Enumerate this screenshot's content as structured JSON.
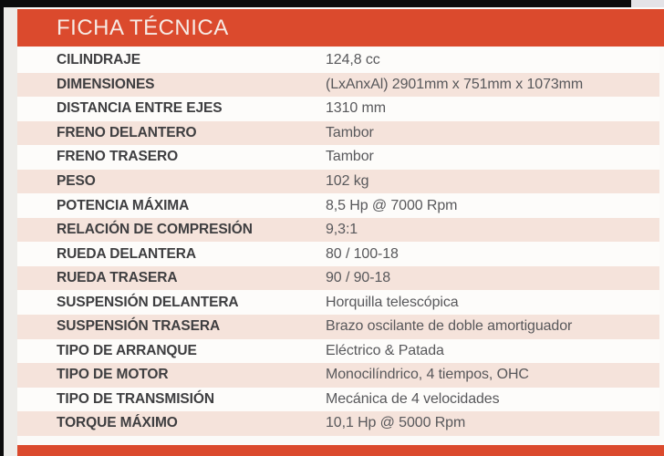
{
  "header": {
    "title": "FICHA TÉCNICA"
  },
  "table": {
    "rows": [
      {
        "label": "CILINDRAJE",
        "value": "124,8 cc"
      },
      {
        "label": "DIMENSIONES",
        "value": "(LxAnxAl) 2901mm x 751mm x 1073mm"
      },
      {
        "label": "DISTANCIA ENTRE EJES",
        "value": "1310 mm"
      },
      {
        "label": "FRENO DELANTERO",
        "value": "Tambor"
      },
      {
        "label": "FRENO TRASERO",
        "value": "Tambor"
      },
      {
        "label": "PESO",
        "value": "102 kg"
      },
      {
        "label": "POTENCIA MÁXIMA",
        "value": "8,5 Hp @ 7000 Rpm"
      },
      {
        "label": "RELACIÓN DE COMPRESIÓN",
        "value": "9,3:1"
      },
      {
        "label": "RUEDA DELANTERA",
        "value": "80 / 100-18"
      },
      {
        "label": "RUEDA TRASERA",
        "value": "90 / 90-18"
      },
      {
        "label": "SUSPENSIÓN DELANTERA",
        "value": "Horquilla telescópica"
      },
      {
        "label": "SUSPENSIÓN TRASERA",
        "value": "Brazo oscilante de doble amortiguador"
      },
      {
        "label": "TIPO DE ARRANQUE",
        "value": "Eléctrico & Patada"
      },
      {
        "label": "TIPO DE MOTOR",
        "value": "Monocilíndrico, 4 tiempos, OHC"
      },
      {
        "label": "TIPO DE TRANSMISIÓN",
        "value": "Mecánica de 4 velocidades"
      },
      {
        "label": "TORQUE MÁXIMO",
        "value": "10,1 Hp @ 5000 Rpm"
      }
    ]
  },
  "colors": {
    "accent": "#DB4A2D",
    "header_text": "#F6EAE4",
    "row_white": "#FDFCFA",
    "row_pink": "#F5E3DB",
    "label_color": "#3E3E40",
    "value_color": "#58585B",
    "edge_black": "#0C0C0C",
    "page_bg": "#FBFAF8"
  }
}
